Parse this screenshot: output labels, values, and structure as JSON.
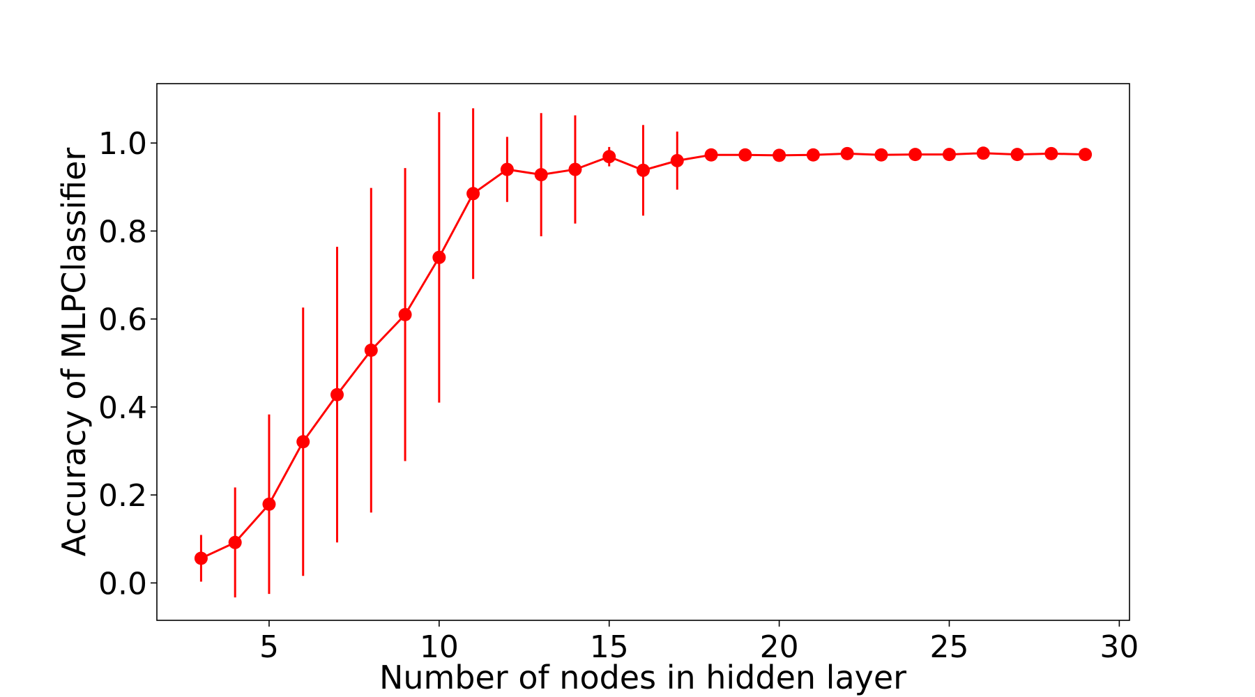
{
  "chart_data": {
    "type": "line",
    "title": "",
    "xlabel": "Number of nodes in hidden layer",
    "ylabel": "Accuracy of MLPClassifier",
    "xlim": [
      1.7,
      30.3
    ],
    "ylim": [
      -0.085,
      1.135
    ],
    "xticks": [
      5,
      10,
      15,
      20,
      25,
      30
    ],
    "xtick_labels": [
      "5",
      "10",
      "15",
      "20",
      "25",
      "30"
    ],
    "yticks": [
      0.0,
      0.2,
      0.4,
      0.6,
      0.8,
      1.0
    ],
    "ytick_labels": [
      "0.0",
      "0.2",
      "0.4",
      "0.6",
      "0.8",
      "1.0"
    ],
    "grid": false,
    "legend": "none",
    "color": "#ff0000",
    "series": [
      {
        "x": [
          3,
          4,
          5,
          6,
          7,
          8,
          9,
          10,
          11,
          12,
          13,
          14,
          15,
          16,
          17,
          18,
          19,
          20,
          21,
          22,
          23,
          24,
          25,
          26,
          27,
          28,
          29
        ],
        "y": [
          0.056,
          0.092,
          0.179,
          0.321,
          0.428,
          0.529,
          0.61,
          0.74,
          0.885,
          0.94,
          0.928,
          0.94,
          0.969,
          0.938,
          0.96,
          0.973,
          0.973,
          0.972,
          0.973,
          0.976,
          0.973,
          0.974,
          0.974,
          0.977,
          0.974,
          0.976,
          0.974
        ],
        "error": [
          0.053,
          0.125,
          0.204,
          0.305,
          0.336,
          0.369,
          0.333,
          0.33,
          0.194,
          0.074,
          0.14,
          0.123,
          0.022,
          0.103,
          0.066,
          0.005,
          0.004,
          0.004,
          0.004,
          0.004,
          0.004,
          0.004,
          0.004,
          0.004,
          0.004,
          0.004,
          0.004
        ]
      }
    ]
  }
}
